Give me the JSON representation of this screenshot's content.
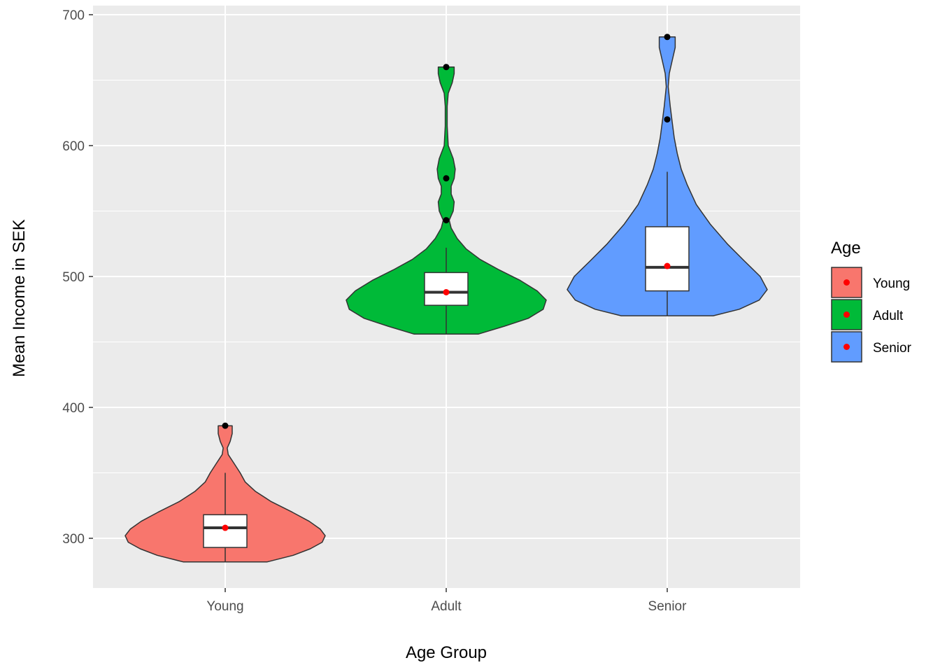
{
  "chart_data": {
    "type": "violin",
    "title": "",
    "xlabel": "Age Group",
    "ylabel": "Mean Income in SEK",
    "categories": [
      "Young",
      "Adult",
      "Senior"
    ],
    "ylim": [
      260,
      700
    ],
    "yticks": [
      300,
      400,
      500,
      600,
      700
    ],
    "grid": true,
    "legend": {
      "title": "Age",
      "position": "right",
      "entries": [
        {
          "label": "Young",
          "color": "#F8766D"
        },
        {
          "label": "Adult",
          "color": "#00BA38"
        },
        {
          "label": "Senior",
          "color": "#619CFF"
        }
      ]
    },
    "groups": [
      {
        "name": "Young",
        "color": "#F8766D",
        "min": 282,
        "max": 386,
        "density": [
          [
            282,
            0.42
          ],
          [
            287,
            0.68
          ],
          [
            292,
            0.85
          ],
          [
            297,
            0.97
          ],
          [
            302,
            1.0
          ],
          [
            307,
            0.95
          ],
          [
            313,
            0.84
          ],
          [
            320,
            0.67
          ],
          [
            328,
            0.46
          ],
          [
            336,
            0.3
          ],
          [
            343,
            0.2
          ],
          [
            350,
            0.15
          ],
          [
            357,
            0.09
          ],
          [
            364,
            0.03
          ],
          [
            369,
            0.02
          ],
          [
            374,
            0.05
          ],
          [
            380,
            0.07
          ],
          [
            386,
            0.07
          ]
        ],
        "box": {
          "q1": 293,
          "median": 308,
          "q3": 318,
          "lower_whisker": 282,
          "upper_whisker": 350
        },
        "mean": 308,
        "outliers": [
          386
        ]
      },
      {
        "name": "Adult",
        "color": "#00BA38",
        "min": 456,
        "max": 660,
        "density": [
          [
            456,
            0.32
          ],
          [
            462,
            0.58
          ],
          [
            468,
            0.82
          ],
          [
            475,
            0.97
          ],
          [
            482,
            1.0
          ],
          [
            489,
            0.91
          ],
          [
            497,
            0.74
          ],
          [
            505,
            0.53
          ],
          [
            513,
            0.34
          ],
          [
            521,
            0.2
          ],
          [
            529,
            0.11
          ],
          [
            537,
            0.05
          ],
          [
            543,
            0.03
          ],
          [
            550,
            0.07
          ],
          [
            557,
            0.08
          ],
          [
            563,
            0.05
          ],
          [
            569,
            0.05
          ],
          [
            575,
            0.08
          ],
          [
            582,
            0.09
          ],
          [
            590,
            0.07
          ],
          [
            600,
            0.02
          ],
          [
            615,
            0.01
          ],
          [
            630,
            0.01
          ],
          [
            640,
            0.02
          ],
          [
            648,
            0.06
          ],
          [
            655,
            0.08
          ],
          [
            660,
            0.08
          ]
        ],
        "box": {
          "q1": 478,
          "median": 488,
          "q3": 503,
          "lower_whisker": 456,
          "upper_whisker": 522
        },
        "mean": 488,
        "outliers": [
          543,
          575,
          660
        ]
      },
      {
        "name": "Senior",
        "color": "#619CFF",
        "min": 470,
        "max": 683,
        "density": [
          [
            470,
            0.46
          ],
          [
            475,
            0.72
          ],
          [
            482,
            0.92
          ],
          [
            490,
            1.0
          ],
          [
            500,
            0.93
          ],
          [
            512,
            0.77
          ],
          [
            525,
            0.6
          ],
          [
            540,
            0.43
          ],
          [
            555,
            0.29
          ],
          [
            570,
            0.2
          ],
          [
            582,
            0.14
          ],
          [
            594,
            0.1
          ],
          [
            606,
            0.07
          ],
          [
            618,
            0.05
          ],
          [
            630,
            0.03
          ],
          [
            645,
            0.01
          ],
          [
            655,
            0.02
          ],
          [
            665,
            0.05
          ],
          [
            675,
            0.08
          ],
          [
            683,
            0.08
          ]
        ],
        "box": {
          "q1": 489,
          "median": 507,
          "q3": 538,
          "lower_whisker": 470,
          "upper_whisker": 580
        },
        "mean": 508,
        "outliers": [
          620,
          683
        ]
      }
    ]
  }
}
